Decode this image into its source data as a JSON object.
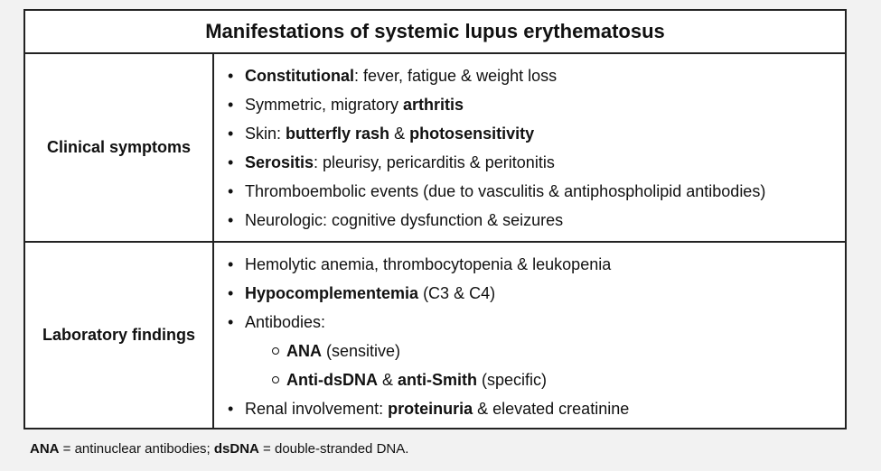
{
  "table": {
    "title": "Manifestations of systemic lupus erythematosus",
    "clinical": {
      "label": "Clinical symptoms",
      "items": [
        {
          "bold1": "Constitutional",
          "text1": ": fever, fatigue & weight loss"
        },
        {
          "text1": "Symmetric, migratory ",
          "bold1": "arthritis"
        },
        {
          "text1": "Skin: ",
          "bold1": "butterfly rash",
          "text2": " & ",
          "bold2": "photosensitivity"
        },
        {
          "bold1": "Serositis",
          "text1": ": pleurisy, pericarditis & peritonitis"
        },
        {
          "text1": "Thromboembolic events (due to vasculitis & antiphospholipid antibodies)"
        },
        {
          "text1": "Neurologic: cognitive dysfunction & seizures"
        }
      ]
    },
    "lab": {
      "label": "Laboratory findings",
      "items": [
        {
          "text1": "Hemolytic anemia, thrombocytopenia & leukopenia"
        },
        {
          "bold1": "Hypocomplementemia",
          "text1": " (C3 & C4)"
        },
        {
          "text1": "Antibodies:"
        },
        {
          "text1": "Renal involvement: ",
          "bold1": "proteinuria",
          "text2": " & elevated creatinine"
        }
      ],
      "antibodies": [
        {
          "bold1": "ANA",
          "text1": " (sensitive)"
        },
        {
          "bold1": "Anti-dsDNA",
          "text1": " & ",
          "bold2": "anti-Smith",
          "text2": " (specific)"
        }
      ]
    }
  },
  "footnote": {
    "bold1": "ANA",
    "text1": " = antinuclear antibodies; ",
    "bold2": "dsDNA",
    "text2": " = double-stranded DNA."
  }
}
